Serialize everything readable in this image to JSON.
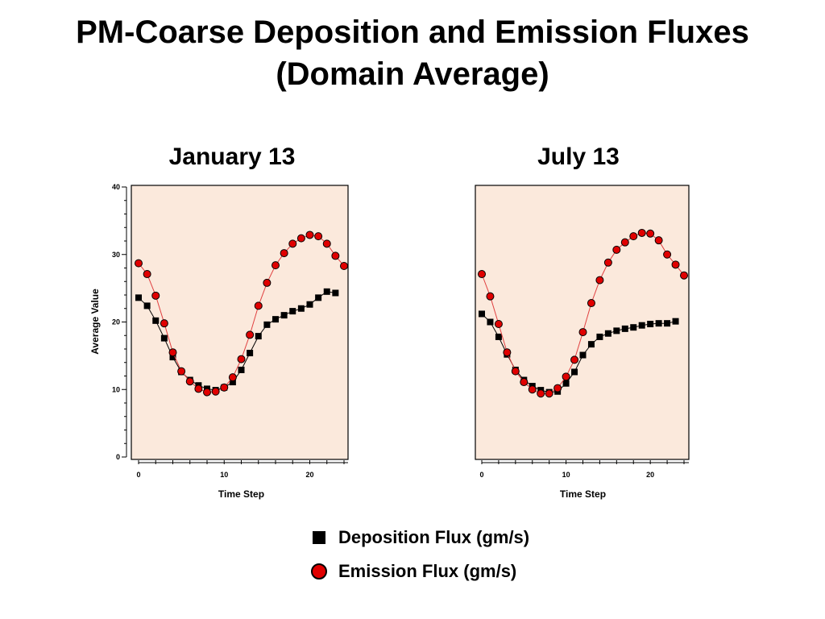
{
  "slide": {
    "title_line1": "PM-Coarse Deposition and Emission Fluxes",
    "title_line2": "(Domain Average)"
  },
  "legend": {
    "deposition_label": "Deposition Flux (gm/s)",
    "emission_label": "Emission Flux (gm/s)"
  },
  "colors": {
    "plot_background": "#fbe9dc",
    "deposition": "#000000",
    "emission": "#e00000",
    "emission_line": "#e04040"
  },
  "chart_data": [
    {
      "type": "line",
      "title": "January 13",
      "xlabel": "Time Step",
      "ylabel": "Average Value",
      "xlim": [
        0,
        24
      ],
      "ylim": [
        0,
        40
      ],
      "x_ticks": [
        0,
        10,
        20
      ],
      "y_ticks": [
        0,
        10,
        20,
        30,
        40
      ],
      "grid": false,
      "series": [
        {
          "name": "Deposition Flux (gm/s)",
          "marker": "square",
          "x": [
            0,
            1,
            2,
            3,
            4,
            5,
            6,
            7,
            8,
            9,
            10,
            11,
            12,
            13,
            14,
            15,
            16,
            17,
            18,
            19,
            20,
            21,
            22,
            23
          ],
          "values": [
            23.6,
            22.4,
            20.2,
            17.6,
            14.8,
            12.6,
            11.4,
            10.6,
            10.1,
            9.9,
            10.3,
            11.1,
            12.9,
            15.4,
            17.9,
            19.6,
            20.4,
            21.0,
            21.6,
            22.0,
            22.6,
            23.6,
            24.5,
            24.3
          ]
        },
        {
          "name": "Emission Flux (gm/s)",
          "marker": "circle",
          "x": [
            0,
            1,
            2,
            3,
            4,
            5,
            6,
            7,
            8,
            9,
            10,
            11,
            12,
            13,
            14,
            15,
            16,
            17,
            18,
            19,
            20,
            21,
            22,
            23,
            24
          ],
          "values": [
            28.7,
            27.1,
            23.9,
            19.8,
            15.5,
            12.7,
            11.2,
            10.1,
            9.6,
            9.7,
            10.3,
            11.8,
            14.5,
            18.1,
            22.4,
            25.8,
            28.4,
            30.2,
            31.6,
            32.4,
            32.9,
            32.7,
            31.6,
            29.8,
            28.3
          ]
        }
      ]
    },
    {
      "type": "line",
      "title": "July 13",
      "xlabel": "Time Step",
      "ylabel": "",
      "xlim": [
        0,
        24
      ],
      "ylim": [
        0,
        40
      ],
      "x_ticks": [
        0,
        10,
        20
      ],
      "y_ticks": [],
      "grid": false,
      "series": [
        {
          "name": "Deposition Flux (gm/s)",
          "marker": "square",
          "x": [
            0,
            1,
            2,
            3,
            4,
            5,
            6,
            7,
            8,
            9,
            10,
            11,
            12,
            13,
            14,
            15,
            16,
            17,
            18,
            19,
            20,
            21,
            22,
            23
          ],
          "values": [
            21.2,
            20.0,
            17.8,
            15.2,
            12.9,
            11.4,
            10.5,
            9.9,
            9.6,
            9.7,
            10.9,
            12.6,
            15.1,
            16.7,
            17.8,
            18.3,
            18.7,
            19.0,
            19.2,
            19.5,
            19.7,
            19.8,
            19.8,
            20.1
          ]
        },
        {
          "name": "Emission Flux (gm/s)",
          "marker": "circle",
          "x": [
            0,
            1,
            2,
            3,
            4,
            5,
            6,
            7,
            8,
            9,
            10,
            11,
            12,
            13,
            14,
            15,
            16,
            17,
            18,
            19,
            20,
            21,
            22,
            23,
            24
          ],
          "values": [
            27.1,
            23.8,
            19.7,
            15.5,
            12.7,
            11.1,
            10.0,
            9.4,
            9.4,
            10.2,
            11.9,
            14.4,
            18.5,
            22.8,
            26.2,
            28.8,
            30.7,
            31.8,
            32.7,
            33.2,
            33.1,
            32.1,
            30.0,
            28.5,
            26.9
          ]
        }
      ]
    }
  ]
}
